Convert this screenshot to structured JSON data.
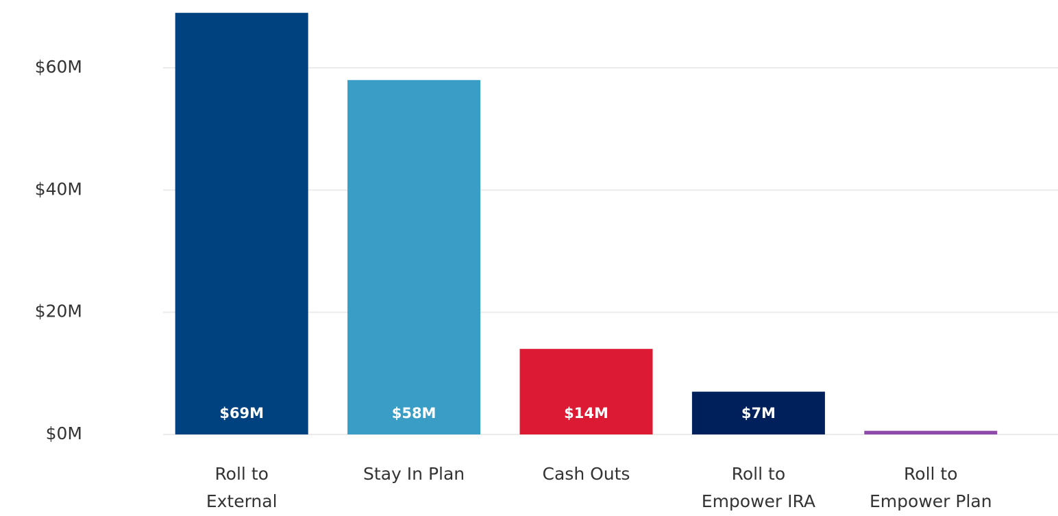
{
  "chart_data": {
    "type": "bar",
    "categories": [
      "Roll to\nExternal",
      "Stay In Plan",
      "Cash Outs",
      "Roll to\nEmpower IRA",
      "Roll to\nEmpower Plan"
    ],
    "values": [
      69,
      58,
      14,
      7,
      0.6
    ],
    "value_labels": [
      "$69M",
      "$58M",
      "$14M",
      "$7M",
      null
    ],
    "colors": [
      "#00417f",
      "#3a9dc6",
      "#dc1a33",
      "#00205b",
      "#8e4aa8"
    ],
    "ylim": [
      0,
      70
    ],
    "yticks": [
      {
        "value": 0,
        "label": "$0M"
      },
      {
        "value": 20,
        "label": "$20M"
      },
      {
        "value": 40,
        "label": "$40M"
      },
      {
        "value": 60,
        "label": "$60M"
      }
    ],
    "grid": true
  }
}
